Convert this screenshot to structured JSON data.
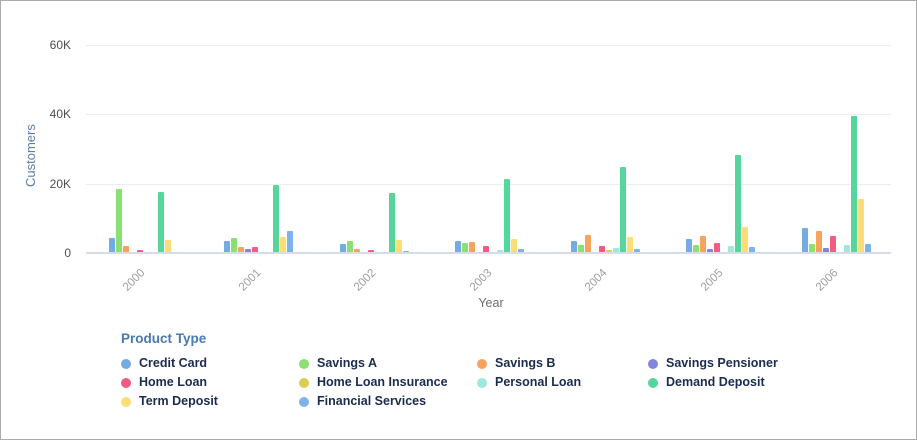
{
  "chart_data": {
    "type": "bar",
    "title": "",
    "xlabel": "Year",
    "ylabel": "Customers",
    "legend_title": "Product Type",
    "legend_position": "bottom",
    "grid": true,
    "ylim": [
      0,
      60000
    ],
    "y_ticks": [
      {
        "value": 0,
        "label": "0"
      },
      {
        "value": 20000,
        "label": "20K"
      },
      {
        "value": 40000,
        "label": "40K"
      },
      {
        "value": 60000,
        "label": "60K"
      }
    ],
    "categories": [
      "2000",
      "2001",
      "2002",
      "2003",
      "2004",
      "2005",
      "2006"
    ],
    "series": [
      {
        "name": "Credit Card",
        "color": "#74ABE2",
        "values": [
          4000,
          3300,
          2400,
          3100,
          3300,
          3800,
          6900
        ]
      },
      {
        "name": "Savings A",
        "color": "#8BE073",
        "values": [
          18000,
          3900,
          3200,
          2500,
          1900,
          1900,
          2400
        ]
      },
      {
        "name": "Savings B",
        "color": "#F7A35C",
        "values": [
          1800,
          1400,
          1000,
          2800,
          5000,
          4500,
          6100
        ]
      },
      {
        "name": "Savings Pensioner",
        "color": "#8285DD",
        "values": [
          0,
          900,
          0,
          0,
          0,
          850,
          1200
        ]
      },
      {
        "name": "Home Loan",
        "color": "#F15C80",
        "values": [
          700,
          1400,
          700,
          1600,
          1800,
          2500,
          4500
        ]
      },
      {
        "name": "Home Loan Insurance",
        "color": "#D9CE52",
        "values": [
          0,
          0,
          0,
          0,
          500,
          0,
          0
        ]
      },
      {
        "name": "Personal Loan",
        "color": "#9FE8DB",
        "values": [
          0,
          0,
          0,
          700,
          1100,
          1600,
          2000
        ]
      },
      {
        "name": "Demand Deposit",
        "color": "#55D69A",
        "values": [
          17200,
          19300,
          17000,
          20900,
          24500,
          28000,
          39200
        ]
      },
      {
        "name": "Term Deposit",
        "color": "#FCDE77",
        "values": [
          3400,
          4200,
          3400,
          3700,
          4200,
          7300,
          15300
        ]
      },
      {
        "name": "Financial Services",
        "color": "#7FB2E8",
        "values": [
          0,
          6000,
          300,
          1000,
          900,
          1350,
          2200
        ]
      }
    ]
  }
}
